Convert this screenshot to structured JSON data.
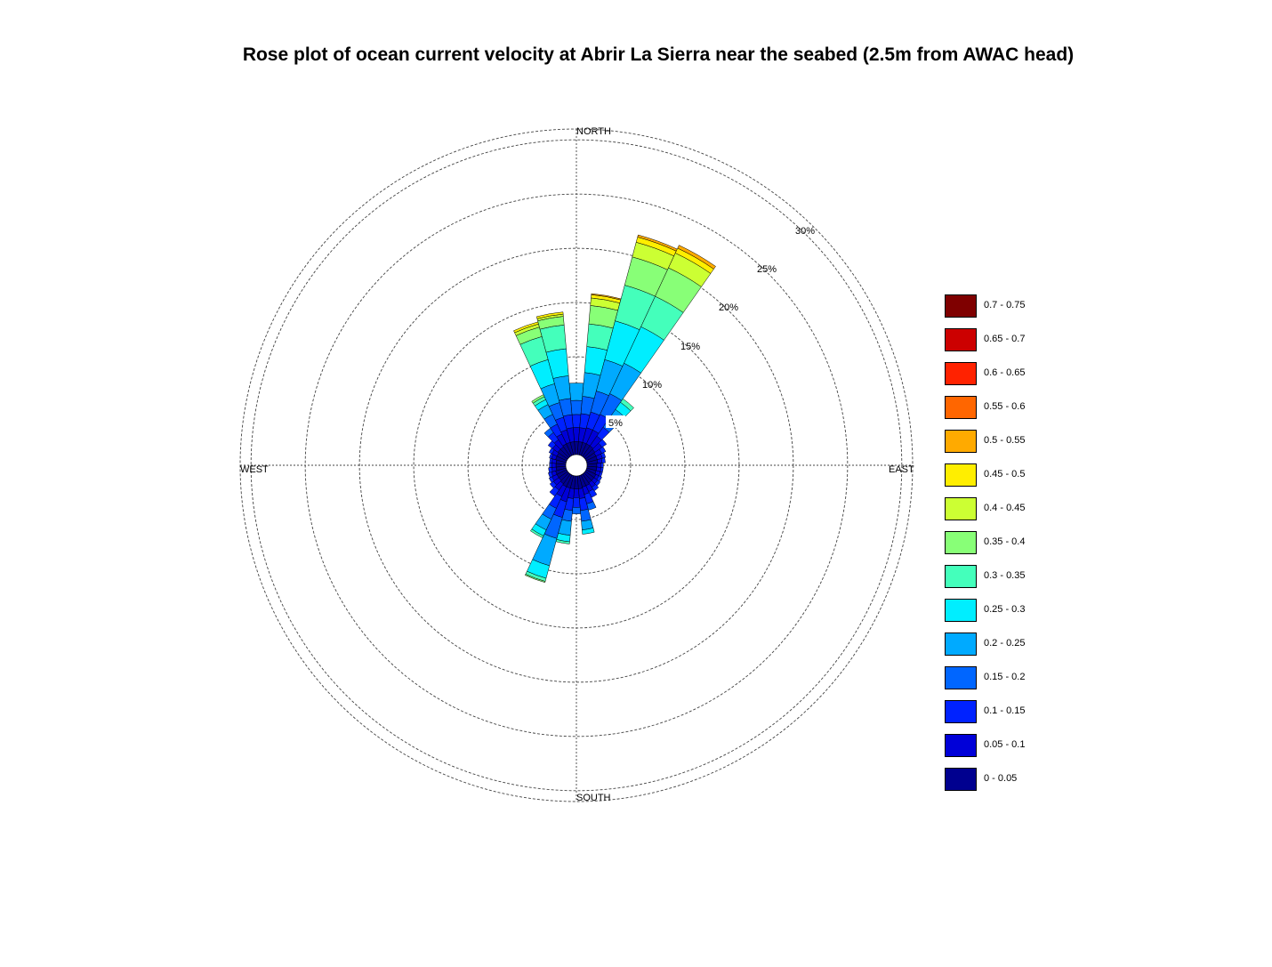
{
  "chart_data": {
    "type": "rose",
    "title": "Rose plot of ocean current velocity at Abrir La Sierra near the seabed (2.5m from AWAC head)",
    "directions": {
      "north": "NORTH",
      "south": "SOUTH",
      "east": "EAST",
      "west": "WEST"
    },
    "ring_labels": [
      "5%",
      "10%",
      "15%",
      "20%",
      "25%",
      "30%"
    ],
    "ring_values": [
      5,
      10,
      15,
      20,
      25,
      30
    ],
    "r_max": 31,
    "legend_title": "",
    "speed_bins": [
      {
        "label": "0 - 0.05",
        "color": "#00008F"
      },
      {
        "label": "0.05 - 0.1",
        "color": "#0000D8"
      },
      {
        "label": "0.1 - 0.15",
        "color": "#0022FF"
      },
      {
        "label": "0.15 - 0.2",
        "color": "#0066FF"
      },
      {
        "label": "0.2 - 0.25",
        "color": "#00AAFF"
      },
      {
        "label": "0.25 - 0.3",
        "color": "#00EEFF"
      },
      {
        "label": "0.3 - 0.35",
        "color": "#44FFBB"
      },
      {
        "label": "0.35 - 0.4",
        "color": "#88FF77"
      },
      {
        "label": "0.4 - 0.45",
        "color": "#CCFF33"
      },
      {
        "label": "0.45 - 0.5",
        "color": "#FFEE00"
      },
      {
        "label": "0.5 - 0.55",
        "color": "#FFAA00"
      },
      {
        "label": "0.55 - 0.6",
        "color": "#FF6600"
      },
      {
        "label": "0.6 - 0.65",
        "color": "#FF2200"
      },
      {
        "label": "0.65 - 0.7",
        "color": "#CC0000"
      },
      {
        "label": "0.7 - 0.75",
        "color": "#7F0000"
      }
    ],
    "sectors": [
      {
        "direction": 0,
        "cumulative": [
          1.2,
          2.5,
          3.7,
          5.0,
          6.6
        ]
      },
      {
        "direction": 10,
        "cumulative": [
          1.2,
          2.5,
          3.8,
          5.4,
          7.6,
          10.0,
          12.1,
          13.8,
          14.5,
          14.8,
          14.9
        ]
      },
      {
        "direction": 20,
        "cumulative": [
          1.2,
          2.6,
          4.1,
          6.1,
          9.1,
          12.8,
          16.2,
          18.9,
          20.3,
          20.8,
          21.0
        ]
      },
      {
        "direction": 30,
        "cumulative": [
          1.2,
          2.6,
          4.2,
          6.3,
          9.4,
          13.1,
          16.2,
          19.1,
          20.6,
          21.1,
          21.4
        ]
      },
      {
        "direction": 40,
        "cumulative": [
          1.2,
          2.3,
          3.3,
          4.2,
          5.3,
          6.1,
          6.5
        ]
      },
      {
        "direction": 50,
        "cumulative": [
          1.1,
          1.9,
          2.4
        ]
      },
      {
        "direction": 60,
        "cumulative": [
          1.0,
          1.6,
          2.0
        ]
      },
      {
        "direction": 70,
        "cumulative": [
          1.0,
          1.5,
          1.8
        ]
      },
      {
        "direction": 80,
        "cumulative": [
          1.0,
          1.4,
          1.7
        ]
      },
      {
        "direction": 90,
        "cumulative": [
          0.9,
          1.3,
          1.5
        ]
      },
      {
        "direction": 100,
        "cumulative": [
          0.9,
          1.3,
          1.5
        ]
      },
      {
        "direction": 110,
        "cumulative": [
          0.9,
          1.3,
          1.5
        ]
      },
      {
        "direction": 120,
        "cumulative": [
          1.0,
          1.3,
          1.6
        ]
      },
      {
        "direction": 130,
        "cumulative": [
          1.0,
          1.4,
          1.7
        ]
      },
      {
        "direction": 140,
        "cumulative": [
          1.0,
          1.5,
          1.9
        ]
      },
      {
        "direction": 150,
        "cumulative": [
          1.1,
          1.7,
          2.3
        ]
      },
      {
        "direction": 160,
        "cumulative": [
          1.1,
          1.8,
          2.7,
          3.3
        ]
      },
      {
        "direction": 170,
        "cumulative": [
          1.2,
          2.1,
          3.2,
          4.2,
          5.0,
          5.4
        ]
      },
      {
        "direction": 180,
        "cumulative": [
          1.2,
          2.0,
          2.9,
          3.5
        ]
      },
      {
        "direction": 190,
        "cumulative": [
          1.2,
          2.1,
          3.2,
          4.2,
          5.5,
          6.1,
          6.3
        ]
      },
      {
        "direction": 200,
        "cumulative": [
          1.2,
          2.5,
          4.0,
          6.0,
          8.6,
          9.8,
          10.1,
          10.2
        ]
      },
      {
        "direction": 210,
        "cumulative": [
          1.2,
          2.2,
          3.4,
          4.5,
          5.6,
          6.2,
          6.4
        ]
      },
      {
        "direction": 220,
        "cumulative": [
          1.1,
          1.8,
          2.5
        ]
      },
      {
        "direction": 230,
        "cumulative": [
          1.0,
          1.6,
          2.0
        ]
      },
      {
        "direction": 240,
        "cumulative": [
          1.0,
          1.5,
          1.8
        ]
      },
      {
        "direction": 250,
        "cumulative": [
          1.0,
          1.4,
          1.7
        ]
      },
      {
        "direction": 260,
        "cumulative": [
          0.9,
          1.3,
          1.6
        ]
      },
      {
        "direction": 270,
        "cumulative": [
          0.9,
          1.3,
          1.5
        ]
      },
      {
        "direction": 280,
        "cumulative": [
          0.9,
          1.3,
          1.5
        ]
      },
      {
        "direction": 290,
        "cumulative": [
          1.0,
          1.4,
          1.6
        ]
      },
      {
        "direction": 300,
        "cumulative": [
          1.0,
          1.5,
          1.8
        ]
      },
      {
        "direction": 310,
        "cumulative": [
          1.1,
          1.7,
          2.2
        ]
      },
      {
        "direction": 320,
        "cumulative": [
          1.1,
          1.9,
          2.7,
          3.2
        ]
      },
      {
        "direction": 330,
        "cumulative": [
          1.2,
          2.2,
          3.2,
          4.2,
          5.2,
          5.7,
          6.0,
          6.2
        ]
      },
      {
        "direction": 340,
        "cumulative": [
          1.2,
          2.4,
          3.6,
          5.0,
          6.8,
          9.1,
          11.3,
          12.2,
          12.5,
          12.7
        ]
      },
      {
        "direction": 350,
        "cumulative": [
          1.2,
          2.5,
          3.7,
          5.2,
          7.3,
          9.8,
          12.0,
          12.8,
          13.0,
          13.2
        ]
      }
    ],
    "sector_width_deg": 10,
    "legend_placement": "right"
  }
}
